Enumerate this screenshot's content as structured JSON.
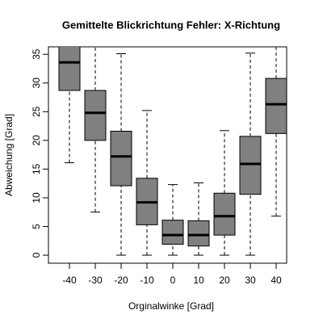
{
  "chart_data": {
    "type": "boxplot",
    "title": "Gemittelte Blickrichtung Fehler: X-Richtung",
    "x_label": "Orginalwinke [Grad]",
    "y_label": "Abweichung [Grad]",
    "categories": [
      -40,
      -30,
      -20,
      -10,
      0,
      10,
      20,
      30,
      40
    ],
    "min": [
      16.1,
      7.5,
      0,
      0,
      0,
      0,
      0,
      0,
      6.8
    ],
    "q1": [
      28.7,
      20.0,
      12.1,
      5.3,
      1.9,
      1.6,
      3.5,
      10.6,
      21.2
    ],
    "median": [
      33.6,
      24.8,
      17.2,
      9.2,
      3.5,
      3.5,
      6.8,
      15.9,
      26.3
    ],
    "q3": [
      37.5,
      28.7,
      21.6,
      13.4,
      6.1,
      6.0,
      10.8,
      20.7,
      30.8
    ],
    "max": [
      40,
      38,
      35.1,
      25.2,
      12.3,
      12.6,
      21.7,
      35.2,
      38
    ],
    "color": "#808080",
    "ylim": [
      -1.4,
      36.3
    ],
    "yticks": [
      0,
      5,
      10,
      15,
      20,
      25,
      30,
      35
    ]
  }
}
